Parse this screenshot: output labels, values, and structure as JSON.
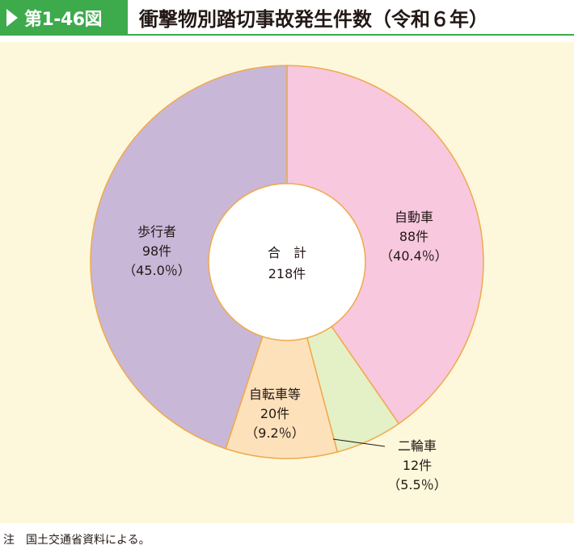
{
  "header": {
    "figure_label": "第1-46図",
    "title": "衝撃物別踏切事故発生件数（令和６年）"
  },
  "chart_data": {
    "type": "pie",
    "style": "donut",
    "center_label": {
      "line1": "合　計",
      "line2": "218件"
    },
    "total": 218,
    "unit": "件",
    "slices": [
      {
        "name": "自動車",
        "value": 88,
        "value_label": "88件",
        "percent_label": "（40.4％）",
        "color": "#f7c8de"
      },
      {
        "name": "二輪車",
        "value": 12,
        "value_label": "12件",
        "percent_label": "（5.5％）",
        "color": "#e4f0c6"
      },
      {
        "name": "自転車等",
        "value": 20,
        "value_label": "20件",
        "percent_label": "（9.2％）",
        "color": "#fde1bb"
      },
      {
        "name": "歩行者",
        "value": 98,
        "value_label": "98件",
        "percent_label": "（45.0％）",
        "color": "#c9b7d8"
      }
    ],
    "stroke_color": "#f1a94a"
  },
  "note": {
    "prefix": "注",
    "text": "国土交通省資料による。"
  }
}
